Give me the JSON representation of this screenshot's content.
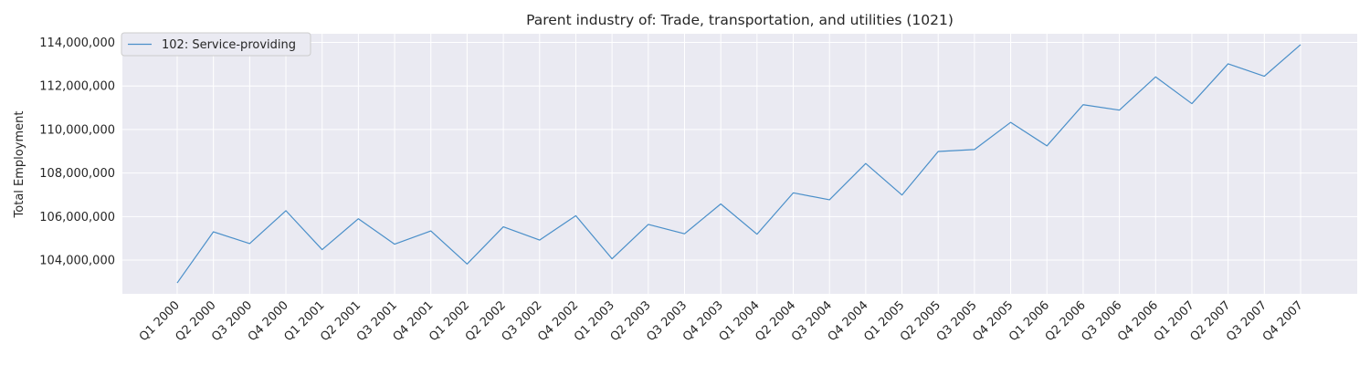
{
  "chart_data": {
    "type": "line",
    "title": "Parent industry of: Trade, transportation, and utilities (1021)",
    "xlabel": "",
    "ylabel": "Total Employment",
    "categories": [
      "Q1 2000",
      "Q2 2000",
      "Q3 2000",
      "Q4 2000",
      "Q1 2001",
      "Q2 2001",
      "Q3 2001",
      "Q4 2001",
      "Q1 2002",
      "Q2 2002",
      "Q3 2002",
      "Q4 2002",
      "Q1 2003",
      "Q2 2003",
      "Q3 2003",
      "Q4 2003",
      "Q1 2004",
      "Q2 2004",
      "Q3 2004",
      "Q4 2004",
      "Q1 2005",
      "Q2 2005",
      "Q3 2005",
      "Q4 2005",
      "Q1 2006",
      "Q2 2006",
      "Q3 2006",
      "Q4 2006",
      "Q1 2007",
      "Q2 2007",
      "Q3 2007",
      "Q4 2007"
    ],
    "series": [
      {
        "name": "102: Service-providing",
        "color": "#4a8fc9",
        "values": [
          102950000,
          105300000,
          104760000,
          106270000,
          104480000,
          105900000,
          104730000,
          105340000,
          103820000,
          105530000,
          104920000,
          106040000,
          104060000,
          105640000,
          105210000,
          106580000,
          105190000,
          107090000,
          106770000,
          108440000,
          106990000,
          108990000,
          109080000,
          110330000,
          109250000,
          111140000,
          110890000,
          112420000,
          111190000,
          113020000,
          112450000,
          113900000
        ]
      }
    ],
    "yticks": [
      104000000,
      106000000,
      108000000,
      110000000,
      112000000,
      114000000
    ],
    "ytick_labels": [
      "104,000,000",
      "106,000,000",
      "108,000,000",
      "110,000,000",
      "112,000,000",
      "114,000,000"
    ],
    "ylim": [
      102450000,
      114400000
    ],
    "grid": true,
    "legend_position": "top-left",
    "background_color": "#eaeaf2",
    "grid_color": "#ffffff"
  }
}
